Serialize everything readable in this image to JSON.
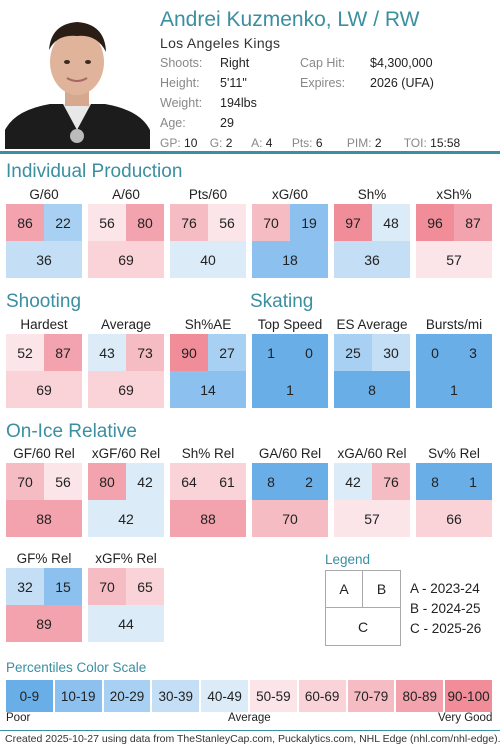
{
  "player": {
    "name": "Andrei Kuzmenko, LW / RW",
    "team": "Los Angeles Kings",
    "shoots_label": "Shoots:",
    "shoots": "Right",
    "height_label": "Height:",
    "height": "5'11\"",
    "weight_label": "Weight:",
    "weight": "194lbs",
    "age_label": "Age:",
    "age": "29",
    "caphit_label": "Cap Hit:",
    "caphit": "$4,300,000",
    "expires_label": "Expires:",
    "expires": "2026 (UFA)",
    "gp_label": "GP:",
    "gp": "10",
    "g_label": "G:",
    "g": "2",
    "a_label": "A:",
    "a": "4",
    "pts_label": "Pts:",
    "pts": "6",
    "pim_label": "PIM:",
    "pim": "2",
    "toi_label": "TOI:",
    "toi": "15:58"
  },
  "sections": {
    "individual": "Individual Production",
    "shooting": "Shooting",
    "skating": "Skating",
    "onice": "On-Ice Relative",
    "legend": "Legend",
    "scale": "Percentiles Color Scale"
  },
  "cards": [
    {
      "title": "G/60",
      "a": 86,
      "b": 22,
      "c": 36
    },
    {
      "title": "A/60",
      "a": 56,
      "b": 80,
      "c": 69
    },
    {
      "title": "Pts/60",
      "a": 76,
      "b": 56,
      "c": 40
    },
    {
      "title": "xG/60",
      "a": 70,
      "b": 19,
      "c": 18
    },
    {
      "title": "Sh%",
      "a": 97,
      "b": 48,
      "c": 36
    },
    {
      "title": "xSh%",
      "a": 96,
      "b": 87,
      "c": 57
    },
    {
      "title": "Hardest",
      "a": 52,
      "b": 87,
      "c": 69
    },
    {
      "title": "Average",
      "a": 43,
      "b": 73,
      "c": 69
    },
    {
      "title": "Sh%AE",
      "a": 90,
      "b": 27,
      "c": 14
    },
    {
      "title": "Top Speed",
      "a": 1,
      "b": 0,
      "c": 1
    },
    {
      "title": "ES Average",
      "a": 25,
      "b": 30,
      "c": 8
    },
    {
      "title": "Bursts/mi",
      "a": 0,
      "b": 3,
      "c": 1
    },
    {
      "title": "GF/60 Rel",
      "a": 70,
      "b": 56,
      "c": 88
    },
    {
      "title": "xGF/60 Rel",
      "a": 80,
      "b": 42,
      "c": 42
    },
    {
      "title": "Sh% Rel",
      "a": 64,
      "b": 61,
      "c": 88
    },
    {
      "title": "GA/60 Rel",
      "a": 8,
      "b": 2,
      "c": 70
    },
    {
      "title": "xGA/60 Rel",
      "a": 42,
      "b": 76,
      "c": 57
    },
    {
      "title": "Sv% Rel",
      "a": 8,
      "b": 1,
      "c": 66
    },
    {
      "title": "GF% Rel",
      "a": 32,
      "b": 15,
      "c": 89
    },
    {
      "title": "xGF% Rel",
      "a": 70,
      "b": 65,
      "c": 44
    }
  ],
  "legend": {
    "a": "A",
    "b": "B",
    "c": "C",
    "a_text": "A - 2023-24",
    "b_text": "B - 2024-25",
    "c_text": "C - 2025-26"
  },
  "scale": {
    "bins": [
      "0-9",
      "10-19",
      "20-29",
      "30-39",
      "40-49",
      "50-59",
      "60-69",
      "70-79",
      "80-89",
      "90-100"
    ],
    "colors": [
      "#6aaee8",
      "#8cc0ee",
      "#a8d0f2",
      "#c4def5",
      "#dcebf8",
      "#fbe5e8",
      "#f9d3d8",
      "#f6bcc3",
      "#f3a3ad",
      "#f08d99"
    ],
    "poor": "Poor",
    "average": "Average",
    "very_good": "Very Good"
  },
  "footer": "Created 2025-10-27 using data from TheStanleyCap.com, Puckalytics.com, NHL Edge (nhl.com/nhl-edge)."
}
